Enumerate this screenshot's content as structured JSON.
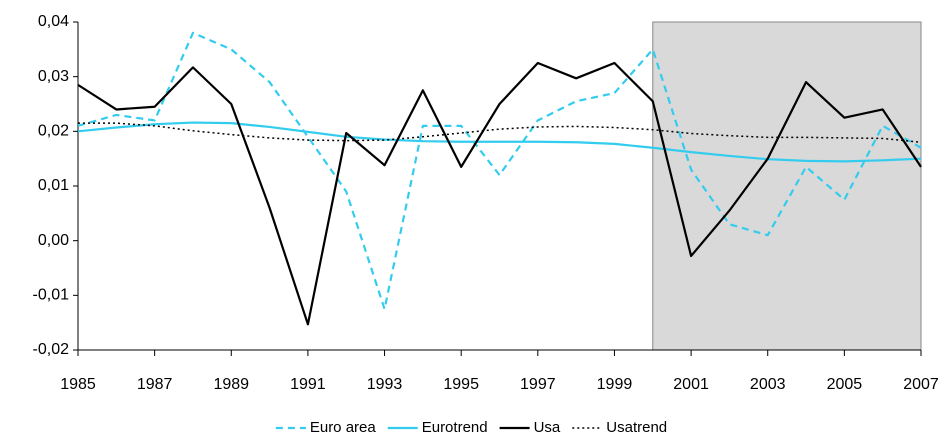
{
  "chart_data": {
    "type": "line",
    "x": [
      1985,
      1986,
      1987,
      1988,
      1989,
      1990,
      1991,
      1992,
      1993,
      1994,
      1995,
      1996,
      1997,
      1998,
      1999,
      2000,
      2001,
      2002,
      2003,
      2004,
      2005,
      2006,
      2007
    ],
    "series": [
      {
        "name": "Euro area",
        "color": "#33ccee",
        "dash": "dashed",
        "values": [
          0.021,
          0.023,
          0.022,
          0.038,
          0.035,
          0.029,
          0.019,
          0.009,
          -0.0125,
          0.021,
          0.021,
          0.012,
          0.022,
          0.0255,
          0.027,
          0.035,
          0.013,
          0.003,
          0.001,
          0.0135,
          0.0075,
          0.021,
          0.017
        ]
      },
      {
        "name": "Eurotrend",
        "color": "#33ccee",
        "dash": "solid",
        "values": [
          0.02,
          0.0207,
          0.0213,
          0.0216,
          0.0215,
          0.0208,
          0.0199,
          0.019,
          0.0185,
          0.0182,
          0.0181,
          0.0181,
          0.0181,
          0.018,
          0.0177,
          0.017,
          0.0162,
          0.0155,
          0.0149,
          0.0146,
          0.0145,
          0.0147,
          0.015
        ]
      },
      {
        "name": "Usa",
        "color": "#000000",
        "dash": "solid",
        "values": [
          0.0285,
          0.024,
          0.0245,
          0.0317,
          0.025,
          0.006,
          -0.0153,
          0.0197,
          0.0138,
          0.0275,
          0.0135,
          0.025,
          0.0325,
          0.0297,
          0.0325,
          0.0255,
          -0.0028,
          0.0055,
          0.015,
          0.029,
          0.0225,
          0.024,
          0.0135
        ]
      },
      {
        "name": "Usatrend",
        "color": "#000000",
        "dash": "dotted",
        "values": [
          0.0215,
          0.0215,
          0.021,
          0.0201,
          0.0194,
          0.0188,
          0.0184,
          0.0183,
          0.0184,
          0.019,
          0.0197,
          0.0204,
          0.0208,
          0.0209,
          0.0207,
          0.0203,
          0.0196,
          0.0192,
          0.0189,
          0.0189,
          0.0188,
          0.0187,
          0.018
        ]
      }
    ],
    "xlim": [
      1985,
      2007
    ],
    "xticks": [
      1985,
      1987,
      1989,
      1991,
      1993,
      1995,
      1997,
      1999,
      2001,
      2003,
      2005,
      2007
    ],
    "ylim": [
      -0.02,
      0.04
    ],
    "yticks": [
      {
        "value": -0.02,
        "label": "-0,02"
      },
      {
        "value": -0.01,
        "label": "-0,01"
      },
      {
        "value": 0,
        "label": "0,00"
      },
      {
        "value": 0.01,
        "label": "0,01"
      },
      {
        "value": 0.02,
        "label": "0,02"
      },
      {
        "value": 0.03,
        "label": "0,03"
      },
      {
        "value": 0.04,
        "label": "0,04"
      }
    ],
    "shaded_region": [
      2000,
      2007
    ],
    "shade_color": "#d9d9d9",
    "legend": "bottom"
  }
}
